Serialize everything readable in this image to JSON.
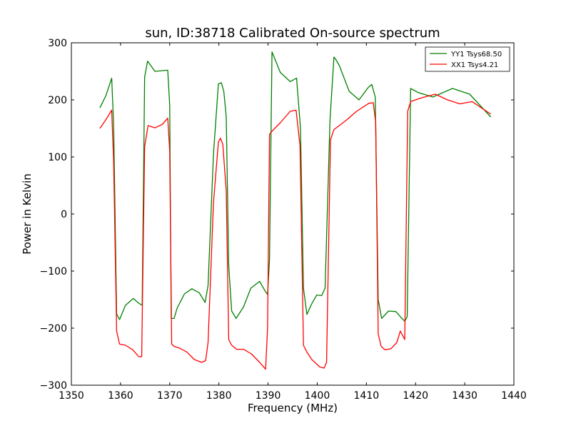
{
  "chart_data": {
    "type": "line",
    "title": "sun, ID:38718 Calibrated On-source spectrum",
    "xlabel": "Frequency (MHz)",
    "ylabel": "Power in Kelvin",
    "xlim": [
      1350,
      1440
    ],
    "ylim": [
      -300,
      300
    ],
    "xticks": [
      1350,
      1360,
      1370,
      1380,
      1390,
      1400,
      1410,
      1420,
      1430,
      1440
    ],
    "yticks": [
      -300,
      -200,
      -100,
      0,
      100,
      200,
      300
    ],
    "xtick_labels": [
      "1350",
      "1360",
      "1370",
      "1380",
      "1390",
      "1400",
      "1410",
      "1420",
      "1430",
      "1440"
    ],
    "ytick_labels": [
      "−300",
      "−200",
      "−100",
      "0",
      "100",
      "200",
      "300"
    ],
    "grid": false,
    "legend_position": "top-right",
    "series": [
      {
        "name": "YY1 Tsys68.50",
        "color": "#008000",
        "x": [
          1355.8,
          1357,
          1358.2,
          1358.6,
          1359.2,
          1359.8,
          1361,
          1362.6,
          1363.8,
          1364.4,
          1364.9,
          1365.5,
          1367,
          1369.6,
          1370,
          1370.3,
          1370.9,
          1371.5,
          1373,
          1374.5,
          1376,
          1377.2,
          1377.8,
          1378.9,
          1379.9,
          1380.5,
          1381,
          1381.5,
          1382,
          1382.6,
          1383.5,
          1385,
          1386.5,
          1388.3,
          1389.4,
          1389.9,
          1390.3,
          1390.8,
          1392.5,
          1394.5,
          1395.8,
          1396.6,
          1397.2,
          1397.9,
          1398.9,
          1399.9,
          1400.9,
          1401.6,
          1402.6,
          1403.4,
          1403.7,
          1404.5,
          1406.5,
          1408.5,
          1410.4,
          1411.1,
          1411.8,
          1412.4,
          1413.1,
          1414.5,
          1416,
          1416.9,
          1417.8,
          1418.3,
          1419,
          1420.5,
          1423.5,
          1427.5,
          1431,
          1435.3
        ],
        "values": [
          186,
          207,
          238,
          155,
          -175,
          -185,
          -160,
          -148,
          -157,
          -160,
          240,
          268,
          250,
          252,
          190,
          -183,
          -183,
          -165,
          -140,
          -131,
          -138,
          -155,
          -125,
          105,
          228,
          230,
          215,
          170,
          -90,
          -170,
          -183,
          -163,
          -130,
          -118,
          -135,
          -141,
          -80,
          284,
          248,
          232,
          238,
          150,
          -130,
          -176,
          -157,
          -142,
          -143,
          -130,
          165,
          275,
          272,
          260,
          215,
          200,
          222,
          227,
          205,
          -150,
          -183,
          -170,
          -171,
          -180,
          -188,
          -180,
          220,
          213,
          205,
          220,
          210,
          170
        ]
      },
      {
        "name": "XX1 Tsys4.21",
        "color": "#ff0000",
        "x": [
          1355.8,
          1357,
          1358.2,
          1358.6,
          1359.2,
          1359.8,
          1361,
          1362.5,
          1363.7,
          1364.3,
          1364.9,
          1365.6,
          1367,
          1368.5,
          1369.6,
          1370,
          1370.4,
          1370.9,
          1372,
          1373.5,
          1375,
          1376.5,
          1377.3,
          1377.8,
          1378.9,
          1379.9,
          1380.3,
          1380.8,
          1381.5,
          1382,
          1382.6,
          1383.6,
          1385,
          1386.6,
          1388.3,
          1389.5,
          1389.9,
          1390.3,
          1390.8,
          1392.5,
          1394.5,
          1395.7,
          1396.5,
          1397.2,
          1397.9,
          1398.9,
          1400.5,
          1401.4,
          1401.9,
          1402.7,
          1403.4,
          1404.5,
          1406,
          1408,
          1410.5,
          1411.4,
          1411.9,
          1412.4,
          1413,
          1413.8,
          1415,
          1416.2,
          1416.9,
          1417.8,
          1418.4,
          1419,
          1421,
          1424,
          1426.5,
          1429,
          1431.5,
          1435.3
        ],
        "values": [
          150,
          165,
          182,
          90,
          -205,
          -228,
          -230,
          -238,
          -250,
          -250,
          118,
          155,
          151,
          157,
          168,
          110,
          -228,
          -232,
          -235,
          -242,
          -255,
          -260,
          -257,
          -225,
          20,
          126,
          133,
          122,
          40,
          -220,
          -230,
          -237,
          -237,
          -245,
          -260,
          -272,
          -200,
          140,
          145,
          160,
          180,
          182,
          120,
          -230,
          -242,
          -255,
          -268,
          -270,
          -260,
          130,
          148,
          155,
          165,
          180,
          194,
          195,
          160,
          -210,
          -232,
          -238,
          -236,
          -225,
          -205,
          -220,
          180,
          197,
          203,
          210,
          200,
          193,
          197,
          175
        ]
      }
    ]
  }
}
